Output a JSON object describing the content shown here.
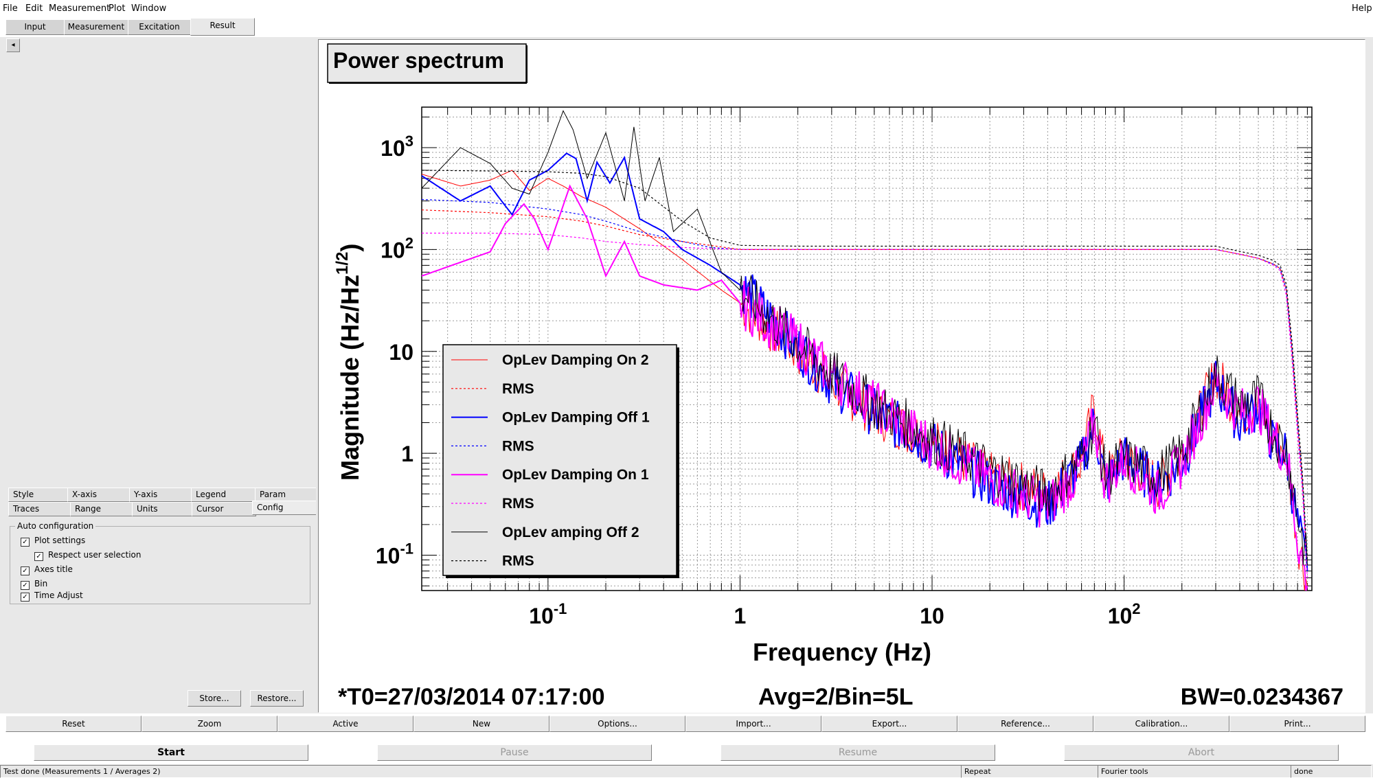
{
  "menu": {
    "items": [
      {
        "label": "File"
      },
      {
        "label": "Edit"
      },
      {
        "label": "Measurement"
      },
      {
        "label": "Plot"
      },
      {
        "label": "Window"
      }
    ],
    "help": "Help"
  },
  "main_tabs": [
    "Input",
    "Measurement",
    "Excitation",
    "Result"
  ],
  "collapse_icon": "◂",
  "option_tabs": {
    "row1": [
      "Style",
      "X-axis",
      "Y-axis",
      "Legend",
      "Param"
    ],
    "row2": [
      "Traces",
      "Range",
      "Units",
      "Cursor",
      "Config"
    ]
  },
  "auto_config": {
    "title": "Auto configuration",
    "checks": [
      {
        "label": "Plot settings",
        "checked": true
      },
      {
        "label": "Respect user selection",
        "checked": true
      },
      {
        "label": "Axes title",
        "checked": true
      },
      {
        "label": "Bin",
        "checked": true
      },
      {
        "label": "Time Adjust",
        "checked": true
      }
    ],
    "check_mark": "✓"
  },
  "left_buttons": {
    "store": "Store...",
    "restore": "Restore..."
  },
  "plot": {
    "title": "Power spectrum",
    "xlabel": "Frequency (Hz)",
    "ylabel_main": "Magnitude (Hz/Hz",
    "ylabel_sup": "1/2",
    "ylabel_end": ")",
    "footer_left": "*T0=27/03/2014 07:17:00",
    "footer_mid": "Avg=2/Bin=5L",
    "footer_right": "BW=0.0234367"
  },
  "chart_data": {
    "type": "line",
    "title": "Power spectrum",
    "xlabel": "Frequency (Hz)",
    "ylabel": "Magnitude (Hz/Hz^1/2)",
    "xscale": "log",
    "yscale": "log",
    "xlim": [
      0.022,
      950
    ],
    "ylim": [
      0.045,
      2500
    ],
    "grid": true,
    "legend_position": "bottom-left",
    "x_ticks": [
      {
        "value": 0.1,
        "base": "10",
        "exp": "-1"
      },
      {
        "value": 1,
        "base": "1",
        "exp": ""
      },
      {
        "value": 10,
        "base": "10",
        "exp": ""
      },
      {
        "value": 100,
        "base": "10",
        "exp": "2"
      }
    ],
    "y_ticks": [
      {
        "value": 0.1,
        "base": "10",
        "exp": "-1"
      },
      {
        "value": 1,
        "base": "1",
        "exp": ""
      },
      {
        "value": 10,
        "base": "10",
        "exp": ""
      },
      {
        "value": 100,
        "base": "10",
        "exp": "2"
      },
      {
        "value": 1000,
        "base": "10",
        "exp": "3"
      }
    ],
    "series": [
      {
        "name": "OpLev Damping On 2",
        "color": "#ff0000",
        "dash": false,
        "width": 1,
        "x": [
          0.022,
          0.035,
          0.05,
          0.065,
          0.08,
          0.1,
          0.12,
          0.15,
          0.2,
          0.3,
          0.5,
          0.8,
          1,
          2,
          3,
          5,
          10,
          20,
          40,
          60,
          70,
          80,
          100,
          150,
          200,
          300,
          400,
          500,
          600,
          700,
          800,
          900
        ],
        "y": [
          550,
          420,
          480,
          600,
          380,
          500,
          420,
          330,
          260,
          160,
          80,
          40,
          30,
          10,
          5,
          2.5,
          1.3,
          0.6,
          0.4,
          0.8,
          3,
          0.6,
          0.9,
          0.5,
          0.9,
          6,
          2.5,
          3,
          1.5,
          1,
          0.15,
          0.05
        ]
      },
      {
        "name": "RMS",
        "color": "#ff0000",
        "dash": true,
        "width": 1.2,
        "x": [
          0.022,
          0.05,
          0.1,
          0.15,
          0.2,
          0.3,
          0.5,
          0.7,
          1,
          2,
          10,
          100,
          200,
          300,
          400,
          500,
          600,
          650,
          700,
          750,
          800,
          850,
          900
        ],
        "y": [
          245,
          230,
          210,
          190,
          170,
          140,
          120,
          110,
          100,
          100,
          100,
          100,
          100,
          100,
          90,
          82,
          72,
          65,
          40,
          10,
          2,
          0.5,
          0.07
        ]
      },
      {
        "name": "OpLev Damping Off 1",
        "color": "#0000ff",
        "dash": false,
        "width": 2,
        "x": [
          0.022,
          0.035,
          0.05,
          0.065,
          0.08,
          0.1,
          0.125,
          0.14,
          0.16,
          0.18,
          0.21,
          0.25,
          0.3,
          0.4,
          0.5,
          0.7,
          1,
          2,
          3,
          5,
          10,
          20,
          40,
          60,
          70,
          80,
          100,
          150,
          200,
          300,
          400,
          500,
          600,
          700,
          800,
          900
        ],
        "y": [
          530,
          300,
          420,
          220,
          480,
          600,
          880,
          780,
          300,
          720,
          450,
          800,
          200,
          150,
          100,
          70,
          45,
          11,
          5,
          2.5,
          1.2,
          0.5,
          0.3,
          0.8,
          2,
          0.5,
          0.9,
          0.5,
          0.8,
          5,
          2,
          3,
          1.2,
          1,
          0.2,
          0.07
        ]
      },
      {
        "name": "RMS",
        "color": "#0000ff",
        "dash": true,
        "width": 1.2,
        "x": [
          0.022,
          0.05,
          0.1,
          0.15,
          0.2,
          0.3,
          0.5,
          0.7,
          1,
          2,
          10,
          100,
          200,
          300,
          400,
          500,
          600,
          650,
          700,
          750,
          800,
          850,
          900
        ],
        "y": [
          310,
          290,
          250,
          220,
          190,
          150,
          120,
          105,
          100,
          100,
          100,
          100,
          100,
          100,
          90,
          82,
          72,
          65,
          40,
          10,
          2,
          0.5,
          0.07
        ]
      },
      {
        "name": "OpLev Damping On 1",
        "color": "#ff00ff",
        "dash": false,
        "width": 2,
        "x": [
          0.022,
          0.035,
          0.05,
          0.06,
          0.075,
          0.085,
          0.1,
          0.13,
          0.16,
          0.2,
          0.25,
          0.3,
          0.4,
          0.6,
          0.8,
          1,
          2,
          3,
          5,
          10,
          20,
          40,
          60,
          70,
          80,
          100,
          150,
          200,
          300,
          400,
          500,
          600,
          700,
          800,
          900
        ],
        "y": [
          55,
          75,
          95,
          180,
          280,
          200,
          100,
          420,
          200,
          55,
          120,
          55,
          45,
          40,
          50,
          30,
          12,
          6,
          3,
          1.2,
          0.55,
          0.3,
          0.7,
          2,
          0.5,
          0.9,
          0.4,
          0.8,
          5,
          2.5,
          3,
          1.4,
          1,
          0.15,
          0.05
        ]
      },
      {
        "name": "RMS",
        "color": "#ff00ff",
        "dash": true,
        "width": 1.2,
        "x": [
          0.022,
          0.05,
          0.1,
          0.15,
          0.2,
          0.3,
          0.5,
          0.7,
          1,
          2,
          10,
          100,
          200,
          300,
          400,
          500,
          600,
          650,
          700,
          750,
          800,
          850,
          900
        ],
        "y": [
          145,
          145,
          140,
          130,
          120,
          112,
          105,
          102,
          100,
          100,
          100,
          100,
          100,
          100,
          90,
          82,
          70,
          62,
          35,
          8,
          1.5,
          0.4,
          0.06
        ]
      },
      {
        "name": "OpLev amping Off 2",
        "color": "#000000",
        "dash": false,
        "width": 1,
        "x": [
          0.022,
          0.035,
          0.05,
          0.065,
          0.08,
          0.1,
          0.12,
          0.135,
          0.16,
          0.2,
          0.25,
          0.28,
          0.32,
          0.38,
          0.45,
          0.6,
          0.8,
          1,
          2,
          3,
          5,
          10,
          20,
          40,
          60,
          70,
          80,
          100,
          150,
          200,
          300,
          400,
          500,
          600,
          700,
          800,
          900
        ],
        "y": [
          400,
          1000,
          700,
          400,
          350,
          900,
          2300,
          1500,
          500,
          1400,
          300,
          1600,
          300,
          800,
          150,
          250,
          60,
          40,
          12,
          6,
          3,
          1.4,
          0.7,
          0.4,
          0.9,
          2,
          0.6,
          0.9,
          0.6,
          1,
          6,
          3,
          3.5,
          1.6,
          1.1,
          0.25,
          0.08
        ]
      },
      {
        "name": "RMS",
        "color": "#000000",
        "dash": true,
        "width": 1.2,
        "x": [
          0.022,
          0.05,
          0.1,
          0.15,
          0.2,
          0.3,
          0.5,
          0.7,
          1,
          2,
          10,
          100,
          200,
          300,
          400,
          500,
          600,
          650,
          700,
          750,
          800,
          850,
          900
        ],
        "y": [
          600,
          590,
          580,
          560,
          520,
          400,
          190,
          130,
          110,
          108,
          108,
          108,
          108,
          108,
          96,
          88,
          78,
          70,
          45,
          12,
          2.5,
          0.6,
          0.09
        ]
      }
    ]
  },
  "bottom_buttons": [
    "Reset",
    "Zoom",
    "Active",
    "New",
    "Options...",
    "Import...",
    "Export...",
    "Reference...",
    "Calibration...",
    "Print..."
  ],
  "run_buttons": [
    {
      "label": "Start",
      "enabled": true
    },
    {
      "label": "Pause",
      "enabled": false
    },
    {
      "label": "Resume",
      "enabled": false
    },
    {
      "label": "Abort",
      "enabled": false
    }
  ],
  "status": {
    "message": "Test done (Measurements 1 / Averages 2)",
    "repeat": "Repeat",
    "tools": "Fourier tools",
    "state": "done"
  }
}
